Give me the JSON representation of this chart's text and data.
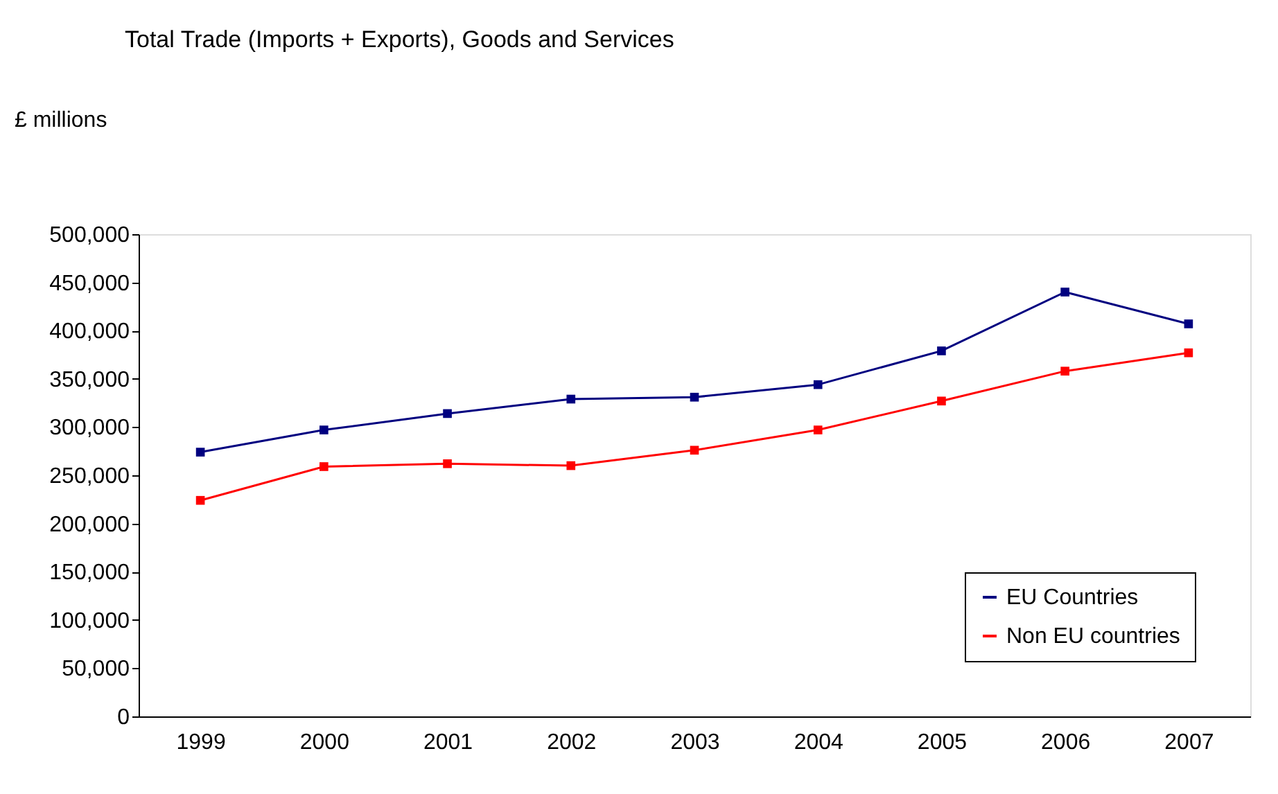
{
  "chart_data": {
    "type": "line",
    "title": "Total Trade (Imports + Exports), Goods and Services",
    "ylabel": "£ millions",
    "categories": [
      "1999",
      "2000",
      "2001",
      "2002",
      "2003",
      "2004",
      "2005",
      "2006",
      "2007"
    ],
    "series": [
      {
        "name": "EU Countries",
        "color": "#000080",
        "values": [
          274000,
          297000,
          314000,
          329000,
          331000,
          344000,
          379000,
          440000,
          407000
        ]
      },
      {
        "name": "Non EU countries",
        "color": "#ff0000",
        "values": [
          224000,
          259000,
          262000,
          260000,
          276000,
          297000,
          327000,
          358000,
          377000
        ]
      }
    ],
    "ylim": [
      0,
      500000
    ],
    "yticks": [
      0,
      {
        "value": 50000,
        "label": "50,000"
      },
      {
        "value": 100000,
        "label": "100,000"
      },
      {
        "value": 150000,
        "label": "150,000"
      },
      {
        "value": 200000,
        "label": "200,000"
      },
      {
        "value": 250000,
        "label": "250,000"
      },
      {
        "value": 300000,
        "label": "300,000"
      },
      {
        "value": 350000,
        "label": "350,000"
      },
      {
        "value": 400000,
        "label": "400,000"
      },
      {
        "value": 450000,
        "label": "450,000"
      },
      {
        "value": 500000,
        "label": "500,000"
      }
    ],
    "grid": false,
    "legend": "bottom right",
    "marker": "square",
    "line_style": "solid"
  }
}
